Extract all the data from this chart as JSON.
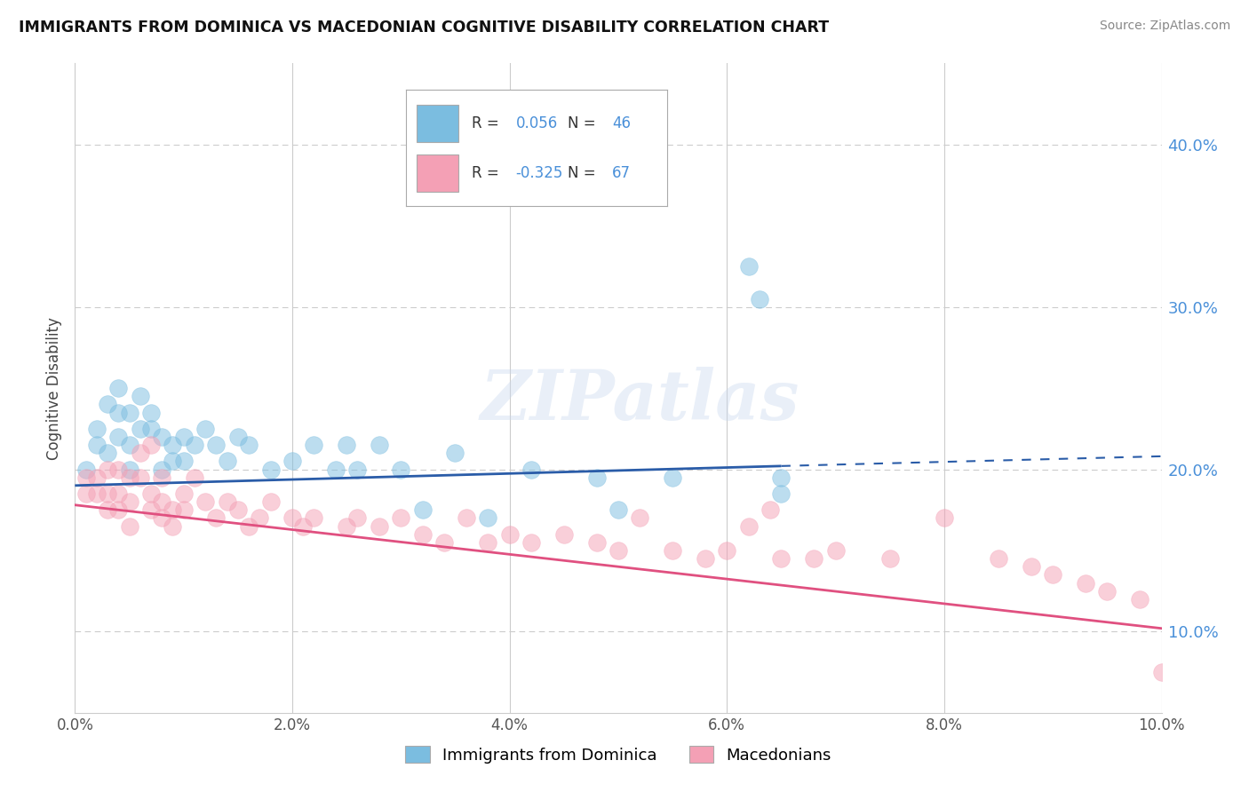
{
  "title": "IMMIGRANTS FROM DOMINICA VS MACEDONIAN COGNITIVE DISABILITY CORRELATION CHART",
  "source": "Source: ZipAtlas.com",
  "ylabel": "Cognitive Disability",
  "xlim": [
    0.0,
    0.1
  ],
  "ylim": [
    0.05,
    0.45
  ],
  "x_tick_labels": [
    "0.0%",
    "2.0%",
    "4.0%",
    "6.0%",
    "8.0%",
    "10.0%"
  ],
  "x_tick_values": [
    0.0,
    0.02,
    0.04,
    0.06,
    0.08,
    0.1
  ],
  "y_tick_labels": [
    "10.0%",
    "20.0%",
    "30.0%",
    "40.0%"
  ],
  "y_tick_values": [
    0.1,
    0.2,
    0.3,
    0.4
  ],
  "blue_R": 0.056,
  "blue_N": 46,
  "pink_R": -0.325,
  "pink_N": 67,
  "blue_color": "#7bbde0",
  "pink_color": "#f4a0b5",
  "blue_line_color": "#2a5ca8",
  "pink_line_color": "#e05080",
  "watermark": "ZIPatlas",
  "legend_labels": [
    "Immigrants from Dominica",
    "Macedonians"
  ],
  "blue_line_x0": 0.0,
  "blue_line_y0": 0.19,
  "blue_line_x1": 0.065,
  "blue_line_y1": 0.202,
  "blue_line_dash_x0": 0.065,
  "blue_line_dash_y0": 0.202,
  "blue_line_dash_x1": 0.1,
  "blue_line_dash_y1": 0.208,
  "pink_line_x0": 0.0,
  "pink_line_y0": 0.178,
  "pink_line_x1": 0.1,
  "pink_line_y1": 0.102,
  "blue_x": [
    0.001,
    0.002,
    0.002,
    0.003,
    0.003,
    0.004,
    0.004,
    0.004,
    0.005,
    0.005,
    0.005,
    0.006,
    0.006,
    0.007,
    0.007,
    0.008,
    0.008,
    0.009,
    0.009,
    0.01,
    0.01,
    0.011,
    0.012,
    0.013,
    0.014,
    0.015,
    0.016,
    0.018,
    0.02,
    0.022,
    0.024,
    0.025,
    0.026,
    0.028,
    0.03,
    0.032,
    0.035,
    0.038,
    0.042,
    0.048,
    0.05,
    0.055,
    0.062,
    0.063,
    0.065,
    0.065
  ],
  "blue_y": [
    0.2,
    0.215,
    0.225,
    0.21,
    0.24,
    0.22,
    0.235,
    0.25,
    0.2,
    0.215,
    0.235,
    0.225,
    0.245,
    0.225,
    0.235,
    0.2,
    0.22,
    0.205,
    0.215,
    0.205,
    0.22,
    0.215,
    0.225,
    0.215,
    0.205,
    0.22,
    0.215,
    0.2,
    0.205,
    0.215,
    0.2,
    0.215,
    0.2,
    0.215,
    0.2,
    0.175,
    0.21,
    0.17,
    0.2,
    0.195,
    0.175,
    0.195,
    0.325,
    0.305,
    0.185,
    0.195
  ],
  "pink_x": [
    0.001,
    0.001,
    0.002,
    0.002,
    0.003,
    0.003,
    0.003,
    0.004,
    0.004,
    0.004,
    0.005,
    0.005,
    0.005,
    0.006,
    0.006,
    0.007,
    0.007,
    0.007,
    0.008,
    0.008,
    0.008,
    0.009,
    0.009,
    0.01,
    0.01,
    0.011,
    0.012,
    0.013,
    0.014,
    0.015,
    0.016,
    0.017,
    0.018,
    0.02,
    0.021,
    0.022,
    0.025,
    0.026,
    0.028,
    0.03,
    0.032,
    0.034,
    0.036,
    0.038,
    0.04,
    0.042,
    0.045,
    0.048,
    0.05,
    0.052,
    0.055,
    0.058,
    0.06,
    0.062,
    0.064,
    0.065,
    0.068,
    0.07,
    0.075,
    0.08,
    0.085,
    0.088,
    0.09,
    0.093,
    0.095,
    0.098,
    0.1
  ],
  "pink_y": [
    0.185,
    0.195,
    0.185,
    0.195,
    0.175,
    0.185,
    0.2,
    0.175,
    0.185,
    0.2,
    0.165,
    0.18,
    0.195,
    0.195,
    0.21,
    0.175,
    0.185,
    0.215,
    0.17,
    0.18,
    0.195,
    0.165,
    0.175,
    0.175,
    0.185,
    0.195,
    0.18,
    0.17,
    0.18,
    0.175,
    0.165,
    0.17,
    0.18,
    0.17,
    0.165,
    0.17,
    0.165,
    0.17,
    0.165,
    0.17,
    0.16,
    0.155,
    0.17,
    0.155,
    0.16,
    0.155,
    0.16,
    0.155,
    0.15,
    0.17,
    0.15,
    0.145,
    0.15,
    0.165,
    0.175,
    0.145,
    0.145,
    0.15,
    0.145,
    0.17,
    0.145,
    0.14,
    0.135,
    0.13,
    0.125,
    0.12,
    0.075
  ]
}
